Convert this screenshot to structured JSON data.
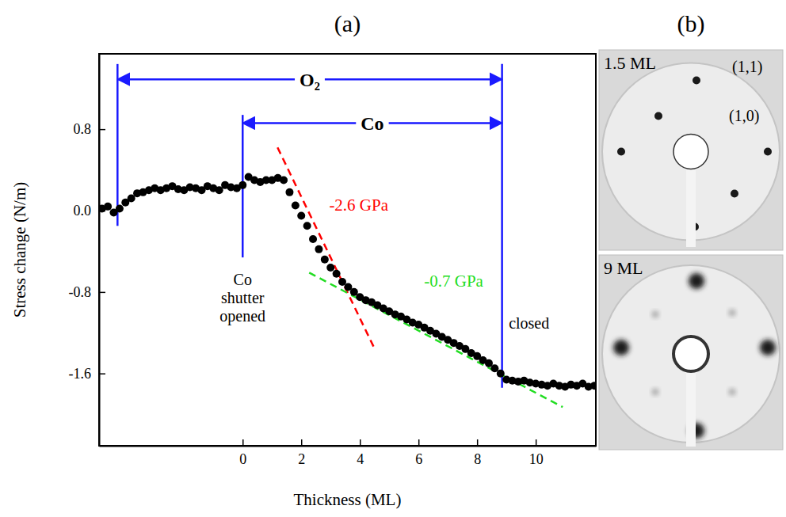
{
  "chart_data": {
    "type": "scatter",
    "title": "(a)",
    "x_label": "Thickness (ML)",
    "y_label": "Stress change (N/m)",
    "xlim": [
      -4.9,
      12.05
    ],
    "ylim": [
      -2.31,
      1.54
    ],
    "xticks": [
      0,
      2,
      4,
      6,
      8,
      10
    ],
    "yticks": [
      -1.6,
      -0.8,
      {
        "value": 0,
        "label": "0.0"
      },
      0.8
    ],
    "color": "#000000",
    "marker": "circle",
    "x": [
      -4.8,
      -4.6,
      -4.4,
      -4.2,
      -4.0,
      -3.8,
      -3.6,
      -3.4,
      -3.2,
      -3.0,
      -2.8,
      -2.6,
      -2.4,
      -2.2,
      -2.0,
      -1.8,
      -1.6,
      -1.4,
      -1.2,
      -1.0,
      -0.8,
      -0.6,
      -0.4,
      -0.2,
      0.0,
      0.2,
      0.4,
      0.6,
      0.8,
      1.0,
      1.2,
      1.4,
      1.6,
      1.8,
      2.0,
      2.2,
      2.4,
      2.6,
      2.8,
      3.0,
      3.2,
      3.4,
      3.6,
      3.8,
      4.0,
      4.2,
      4.4,
      4.6,
      4.8,
      5.0,
      5.2,
      5.4,
      5.6,
      5.8,
      6.0,
      6.2,
      6.4,
      6.6,
      6.8,
      7.0,
      7.2,
      7.4,
      7.6,
      7.8,
      8.0,
      8.2,
      8.4,
      8.6,
      8.8,
      9.0,
      9.2,
      9.4,
      9.6,
      9.8,
      10.0,
      10.2,
      10.4,
      10.6,
      10.8,
      11.0,
      11.2,
      11.4,
      11.6,
      11.8,
      12.0
    ],
    "values": [
      0.02,
      0.04,
      -0.02,
      0.02,
      0.08,
      0.12,
      0.17,
      0.18,
      0.2,
      0.22,
      0.2,
      0.22,
      0.24,
      0.21,
      0.2,
      0.23,
      0.22,
      0.2,
      0.24,
      0.22,
      0.2,
      0.25,
      0.23,
      0.22,
      0.25,
      0.33,
      0.3,
      0.28,
      0.3,
      0.3,
      0.32,
      0.3,
      0.18,
      0.05,
      -0.05,
      -0.15,
      -0.28,
      -0.38,
      -0.48,
      -0.56,
      -0.62,
      -0.7,
      -0.75,
      -0.8,
      -0.85,
      -0.88,
      -0.9,
      -0.93,
      -0.96,
      -0.99,
      -1.02,
      -1.04,
      -1.07,
      -1.1,
      -1.12,
      -1.15,
      -1.18,
      -1.21,
      -1.24,
      -1.27,
      -1.3,
      -1.33,
      -1.36,
      -1.4,
      -1.43,
      -1.47,
      -1.5,
      -1.55,
      -1.6,
      -1.66,
      -1.67,
      -1.68,
      -1.67,
      -1.69,
      -1.7,
      -1.71,
      -1.72,
      -1.7,
      -1.72,
      -1.73,
      -1.71,
      -1.72,
      -1.7,
      -1.73,
      -1.72
    ],
    "fits": [
      {
        "label": "-2.6 GPa",
        "color": "#ff0000",
        "line_style": "dashed",
        "x": [
          1.19,
          4.49
        ],
        "y": [
          0.62,
          -1.35
        ],
        "label_x": 2.95,
        "label_y": 0.0
      },
      {
        "label": "-0.7 GPa",
        "color": "#22dd22",
        "line_style": "dashed",
        "x": [
          2.27,
          10.92
        ],
        "y": [
          -0.61,
          -1.93
        ],
        "label_x": 6.19,
        "label_y": -0.75
      }
    ],
    "markers": [
      {
        "x": -4.27,
        "y": [
          -0.15,
          1.44
        ],
        "color": "#1a1aff"
      },
      {
        "x": 0,
        "y": [
          -0.46,
          0.94
        ],
        "color": "#1a1aff"
      },
      {
        "x": 8.85,
        "y": [
          -1.74,
          1.44
        ],
        "color": "#1a1aff"
      }
    ],
    "spans": [
      {
        "label": "O₂",
        "x": [
          -4.27,
          8.85
        ],
        "y": 1.29,
        "color": "#1a1aff"
      },
      {
        "label": "Co",
        "x": [
          0,
          8.85
        ],
        "y": 0.86,
        "color": "#1a1aff"
      }
    ],
    "annotations": [
      {
        "lines": [
          "Co",
          "shutter",
          "opened"
        ],
        "x": 0,
        "y": -0.73
      },
      {
        "lines": [
          "closed"
        ],
        "x": 9.08,
        "y": -1.16
      }
    ]
  },
  "panel_b": {
    "title": "(b)",
    "images": [
      {
        "label": "1.5 ML",
        "spot_labels": [
          "(1,1)",
          "(1,0)"
        ]
      },
      {
        "label": "9 ML"
      }
    ]
  }
}
